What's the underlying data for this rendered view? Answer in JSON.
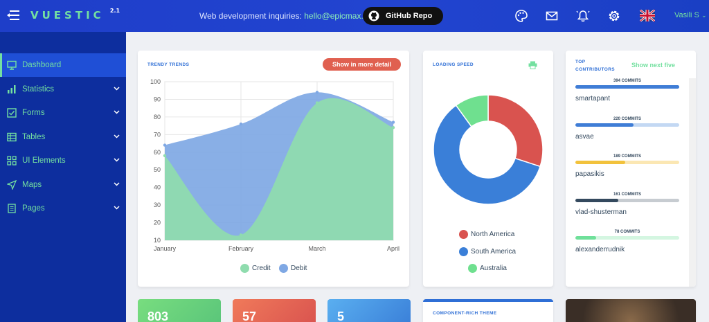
{
  "header": {
    "logo": "VUESTIC",
    "version": "2.1",
    "inquiry_text": "Web development inquiries:",
    "inquiry_email": "hello@epicmax.co",
    "github_label": "GitHub Repo",
    "user_name": "Vasili S"
  },
  "sidebar": {
    "items": [
      {
        "label": "Dashboard",
        "icon": "monitor-icon",
        "active": true
      },
      {
        "label": "Statistics",
        "icon": "bar-chart-icon"
      },
      {
        "label": "Forms",
        "icon": "checkbox-icon"
      },
      {
        "label": "Tables",
        "icon": "table-icon"
      },
      {
        "label": "UI Elements",
        "icon": "grid-icon"
      },
      {
        "label": "Maps",
        "icon": "send-icon"
      },
      {
        "label": "Pages",
        "icon": "document-icon"
      }
    ]
  },
  "trends": {
    "title": "TRENDY TRENDS",
    "button": "Show in more detail"
  },
  "speed": {
    "title": "LOADING SPEED"
  },
  "contributors": {
    "title_line1": "TOP",
    "title_line2": "CONTRIBUTORS",
    "next_label": "Show next five",
    "list": [
      {
        "commits": "394 COMMITS",
        "name": "smartapant",
        "ratio": 1.0,
        "color": "#3f7dd6",
        "track": "#3f7dd6"
      },
      {
        "commits": "220 COMMITS",
        "name": "asvae",
        "ratio": 0.56,
        "color": "#3f7dd6",
        "track": "#c3d8f3"
      },
      {
        "commits": "189 COMMITS",
        "name": "papasikis",
        "ratio": 0.48,
        "color": "#f2c23c",
        "track": "#fbe7b3"
      },
      {
        "commits": "161 COMMITS",
        "name": "vlad-shusterman",
        "ratio": 0.41,
        "color": "#34495e",
        "track": "#c7ccd1"
      },
      {
        "commits": "78 COMMITS",
        "name": "alexanderrudnik",
        "ratio": 0.2,
        "color": "#6fe09a",
        "track": "#d4f6e1"
      }
    ]
  },
  "stats": [
    {
      "value": "803",
      "color": "#6fd07e"
    },
    {
      "value": "57",
      "color": "#e96a52"
    },
    {
      "value": "5",
      "color": "#4a9fe6"
    }
  ],
  "theme_card": {
    "title": "COMPONENT-RICH THEME"
  },
  "colors": {
    "credit": "#8fdcae",
    "debit": "#7fa8e4",
    "north_america": "#d9534f",
    "south_america": "#3a7fd8",
    "australia": "#6fe08f"
  },
  "chart_data": [
    {
      "type": "area",
      "title": "",
      "categories": [
        "January",
        "February",
        "March",
        "April"
      ],
      "ylim": [
        10,
        100
      ],
      "yticks": [
        10,
        20,
        30,
        40,
        50,
        60,
        70,
        80,
        90,
        100
      ],
      "grid": true,
      "legend_position": "bottom",
      "series": [
        {
          "name": "Credit",
          "values": [
            58,
            13,
            88,
            74
          ],
          "color": "#8fdcae"
        },
        {
          "name": "Debit",
          "values": [
            64,
            76,
            94,
            77
          ],
          "color": "#7fa8e4"
        }
      ]
    },
    {
      "type": "pie",
      "title": "",
      "labels": [
        "North America",
        "South America",
        "Australia"
      ],
      "values": [
        30,
        60,
        10
      ],
      "colors": [
        "#d9534f",
        "#3a7fd8",
        "#6fe08f"
      ],
      "legend_position": "bottom"
    }
  ]
}
